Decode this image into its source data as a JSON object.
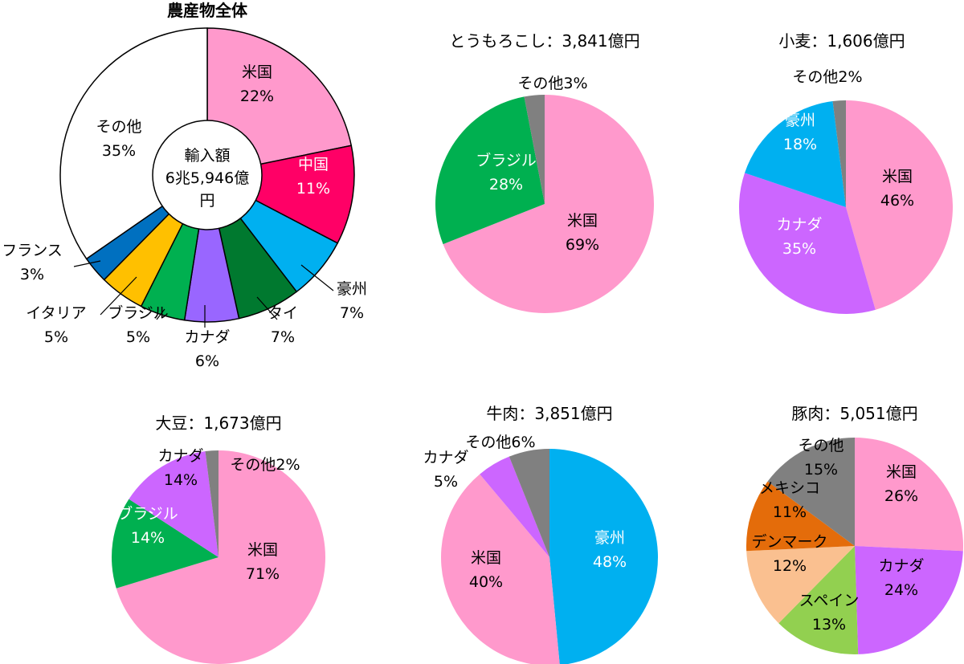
{
  "chart_data": [
    {
      "type": "pie",
      "title": "農産物全体",
      "center_label": [
        "輸入額",
        "6兆5,946億",
        "円"
      ],
      "series": [
        {
          "name": "米国",
          "value": 22,
          "label": "22%",
          "color": "#ff99cc"
        },
        {
          "name": "中国",
          "value": 11,
          "label": "11%",
          "color": "#ff0066"
        },
        {
          "name": "豪州",
          "value": 7,
          "label": "7%",
          "color": "#00b0f0"
        },
        {
          "name": "タイ",
          "value": 7,
          "label": "7%",
          "color": "#00792f"
        },
        {
          "name": "カナダ",
          "value": 6,
          "label": "6%",
          "color": "#9966ff"
        },
        {
          "name": "ブラジル",
          "value": 5,
          "label": "5%",
          "color": "#00b050"
        },
        {
          "name": "イタリア",
          "value": 5,
          "label": "5%",
          "color": "#ffc000"
        },
        {
          "name": "フランス",
          "value": 3,
          "label": "3%",
          "color": "#0070c0"
        },
        {
          "name": "その他",
          "value": 35,
          "label": "35%",
          "color": "#ffffff"
        }
      ]
    },
    {
      "type": "pie",
      "title": "とうもろこし：3,841億円",
      "series": [
        {
          "name": "米国",
          "value": 69,
          "label": "69%",
          "color": "#ff99cc"
        },
        {
          "name": "ブラジル",
          "value": 28,
          "label": "28%",
          "color": "#00b050"
        },
        {
          "name": "その他",
          "value": 3,
          "label": "3%",
          "color": "#808080"
        }
      ]
    },
    {
      "type": "pie",
      "title": "小麦：1,606億円",
      "series": [
        {
          "name": "米国",
          "value": 46,
          "label": "46%",
          "color": "#ff99cc"
        },
        {
          "name": "カナダ",
          "value": 35,
          "label": "35%",
          "color": "#cc66ff"
        },
        {
          "name": "豪州",
          "value": 18,
          "label": "18%",
          "color": "#00b0f0"
        },
        {
          "name": "その他",
          "value": 2,
          "label": "2%",
          "color": "#808080"
        }
      ]
    },
    {
      "type": "pie",
      "title": "大豆：1,673億円",
      "series": [
        {
          "name": "米国",
          "value": 71,
          "label": "71%",
          "color": "#ff99cc"
        },
        {
          "name": "ブラジル",
          "value": 14,
          "label": "14%",
          "color": "#00b050"
        },
        {
          "name": "カナダ",
          "value": 14,
          "label": "14%",
          "color": "#cc66ff"
        },
        {
          "name": "その他",
          "value": 2,
          "label": "2%",
          "color": "#808080"
        }
      ]
    },
    {
      "type": "pie",
      "title": "牛肉：3,851億円",
      "series": [
        {
          "name": "豪州",
          "value": 48,
          "label": "48%",
          "color": "#00b0f0"
        },
        {
          "name": "米国",
          "value": 40,
          "label": "40%",
          "color": "#ff99cc"
        },
        {
          "name": "カナダ",
          "value": 5,
          "label": "5%",
          "color": "#cc66ff"
        },
        {
          "name": "その他",
          "value": 6,
          "label": "6%",
          "color": "#808080"
        }
      ]
    },
    {
      "type": "pie",
      "title": "豚肉：5,051億円",
      "series": [
        {
          "name": "米国",
          "value": 26,
          "label": "26%",
          "color": "#ff99cc"
        },
        {
          "name": "カナダ",
          "value": 24,
          "label": "24%",
          "color": "#cc66ff"
        },
        {
          "name": "スペイン",
          "value": 13,
          "label": "13%",
          "color": "#92d050"
        },
        {
          "name": "デンマーク",
          "value": 12,
          "label": "12%",
          "color": "#fac090"
        },
        {
          "name": "メキシコ",
          "value": 11,
          "label": "11%",
          "color": "#e46c0a"
        },
        {
          "name": "その他",
          "value": 15,
          "label": "15%",
          "color": "#808080"
        }
      ]
    }
  ]
}
